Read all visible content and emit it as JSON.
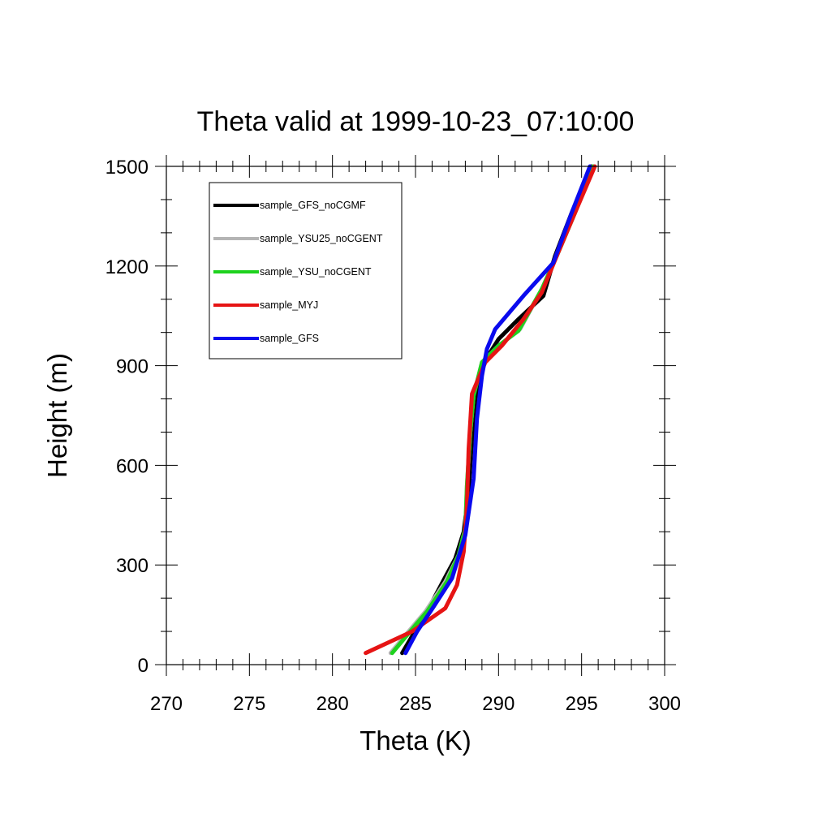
{
  "chart_data": {
    "type": "line",
    "title": "Theta valid at 1999-10-23_07:10:00",
    "xlabel": "Theta (K)",
    "ylabel": "Height (m)",
    "xlim": [
      270,
      300
    ],
    "ylim": [
      0,
      1500
    ],
    "xticks": [
      "270",
      "275",
      "280",
      "285",
      "290",
      "295",
      "300"
    ],
    "yticks": [
      "0",
      "300",
      "600",
      "900",
      "1200",
      "1500"
    ],
    "grid": false,
    "legend_position": "top-left",
    "series": [
      {
        "name": "sample_GFS_noCGMF",
        "color": "#000000",
        "x": [
          284.2,
          284.9,
          285.8,
          286.7,
          287.4,
          287.9,
          288.2,
          288.4,
          288.6,
          289.0,
          290.0,
          291.2,
          292.7,
          293.4,
          294.4,
          295.6
        ],
        "y": [
          35,
          95,
          170,
          255,
          320,
          400,
          520,
          680,
          800,
          900,
          980,
          1040,
          1110,
          1230,
          1360,
          1500
        ]
      },
      {
        "name": "sample_YSU25_noCGENT",
        "color": "#b4b4b4",
        "x": [
          283.5,
          284.5,
          285.6,
          286.8,
          287.6,
          288.0,
          288.1,
          288.3,
          288.5,
          289.0,
          290.0,
          291.3,
          292.6,
          293.5,
          294.6,
          295.7
        ],
        "y": [
          35,
          95,
          160,
          250,
          330,
          410,
          540,
          700,
          810,
          910,
          960,
          1010,
          1130,
          1230,
          1360,
          1500
        ]
      },
      {
        "name": "sample_YSU_noCGENT",
        "color": "#1ed21e",
        "x": [
          283.6,
          284.6,
          285.7,
          286.9,
          287.6,
          288.0,
          288.1,
          288.3,
          288.5,
          289.0,
          290.0,
          291.2,
          292.6,
          293.5,
          294.6,
          295.7
        ],
        "y": [
          35,
          95,
          160,
          250,
          330,
          410,
          540,
          700,
          810,
          910,
          960,
          1005,
          1130,
          1230,
          1360,
          1500
        ]
      },
      {
        "name": "sample_MYJ",
        "color": "#e61414",
        "x": [
          282.0,
          284.8,
          286.8,
          287.5,
          287.9,
          288.1,
          288.2,
          288.4,
          289.2,
          290.2,
          291.5,
          292.6,
          293.5,
          294.6,
          295.8
        ],
        "y": [
          35,
          100,
          170,
          240,
          340,
          480,
          650,
          815,
          910,
          960,
          1040,
          1120,
          1230,
          1360,
          1500
        ]
      },
      {
        "name": "sample_GFS",
        "color": "#0a0aee",
        "x": [
          284.4,
          285.1,
          286.1,
          287.2,
          288.0,
          288.5,
          288.7,
          289.0,
          289.3,
          289.8,
          291.5,
          293.3,
          294.4,
          295.5
        ],
        "y": [
          35,
          100,
          175,
          260,
          390,
          560,
          740,
          870,
          950,
          1010,
          1110,
          1210,
          1360,
          1500
        ]
      }
    ]
  }
}
